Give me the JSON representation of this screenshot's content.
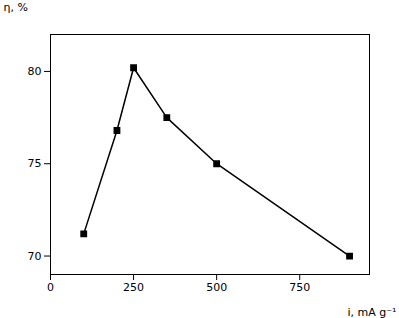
{
  "chart_data": {
    "type": "line",
    "x": [
      100,
      200,
      250,
      350,
      500,
      900
    ],
    "values": [
      71.2,
      76.8,
      80.2,
      77.5,
      75.0,
      70.0
    ],
    "xlabel": "i, mA g⁻¹",
    "ylabel": "η, %",
    "xlim": [
      0,
      960
    ],
    "ylim": [
      69.0,
      82.0
    ],
    "xticks": [
      0,
      250,
      500,
      750
    ],
    "yticks": [
      70,
      75,
      80
    ],
    "color": "#000000",
    "marker": "square",
    "line_style": "solid",
    "grid": false
  }
}
